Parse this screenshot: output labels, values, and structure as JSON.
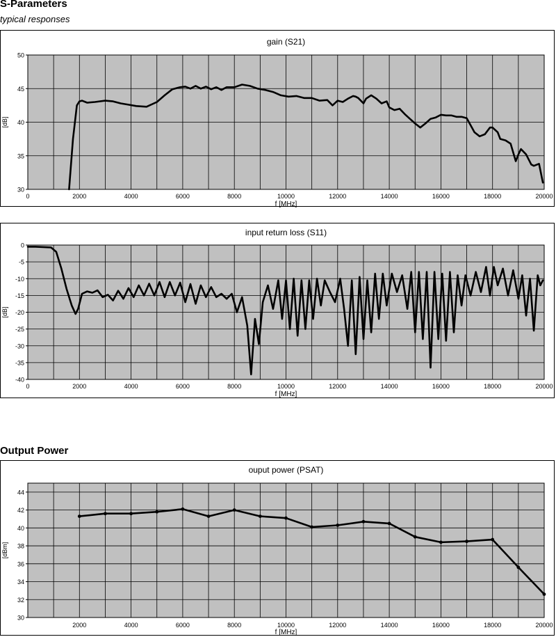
{
  "sections": {
    "sparams": {
      "title": "S-Parameters",
      "subtitle": "typical responses"
    },
    "output_power": {
      "title": "Output Power"
    }
  },
  "chart_data": [
    {
      "type": "line",
      "title": "gain (S21)",
      "xlabel": "f [MHz]",
      "ylabel": "[dB]",
      "xlim": [
        0,
        20000
      ],
      "ylim": [
        30,
        50
      ],
      "xticks": [
        0,
        2000,
        4000,
        6000,
        8000,
        10000,
        12000,
        14000,
        16000,
        18000,
        20000
      ],
      "yticks": [
        30,
        35,
        40,
        45,
        50
      ],
      "grid": true,
      "plot_background": "#c0c0c0",
      "line_color": "#000000",
      "series": [
        {
          "x": [
            1600,
            1750,
            1900,
            2000,
            2100,
            2300,
            2600,
            3000,
            3300,
            3600,
            3900,
            4200,
            4600,
            5000,
            5300,
            5600,
            5900,
            6100,
            6300,
            6500,
            6700,
            6900,
            7100,
            7300,
            7500,
            7700,
            8000,
            8300,
            8600,
            8900,
            9200,
            9500,
            9800,
            10100,
            10400,
            10700,
            11000,
            11300,
            11600,
            11800,
            12000,
            12200,
            12400,
            12600,
            12700,
            12800,
            13000,
            13100,
            13300,
            13500,
            13700,
            13900,
            14000,
            14200,
            14400,
            14600,
            14800,
            15000,
            15200,
            15400,
            15600,
            15800,
            16000,
            16200,
            16400,
            16600,
            16800,
            17000,
            17200,
            17300,
            17500,
            17700,
            17900,
            18000,
            18200,
            18300,
            18500,
            18700,
            18900,
            19000,
            19100,
            19300,
            19500,
            19600,
            19800,
            19950
          ],
          "y": [
            30,
            37.5,
            42.5,
            43.1,
            43.2,
            42.9,
            43.0,
            43.2,
            43.1,
            42.8,
            42.6,
            42.4,
            42.3,
            43.0,
            44.0,
            44.9,
            45.2,
            45.3,
            45.0,
            45.4,
            45.0,
            45.3,
            44.9,
            45.2,
            44.8,
            45.2,
            45.2,
            45.6,
            45.4,
            45.0,
            44.8,
            44.5,
            44.0,
            43.8,
            43.9,
            43.6,
            43.6,
            43.2,
            43.3,
            42.5,
            43.2,
            43.0,
            43.5,
            43.9,
            43.8,
            43.6,
            42.8,
            43.5,
            44.0,
            43.5,
            42.8,
            43.1,
            42.2,
            41.8,
            42.0,
            41.2,
            40.5,
            39.8,
            39.2,
            39.8,
            40.5,
            40.7,
            41.1,
            41.0,
            41.0,
            40.8,
            40.8,
            40.6,
            39.2,
            38.5,
            37.9,
            38.2,
            39.2,
            39.2,
            38.5,
            37.5,
            37.3,
            36.8,
            34.2,
            35.2,
            36.0,
            35.2,
            33.7,
            33.5,
            33.8,
            31.0
          ]
        }
      ]
    },
    {
      "type": "line",
      "title": "input return loss (S11)",
      "xlabel": "f [MHz]",
      "ylabel": "[dB]",
      "xlim": [
        0,
        20000
      ],
      "ylim": [
        -40,
        0
      ],
      "xticks": [
        0,
        2000,
        4000,
        6000,
        8000,
        10000,
        12000,
        14000,
        16000,
        18000,
        20000
      ],
      "yticks": [
        0,
        -5,
        -10,
        -15,
        -20,
        -25,
        -30,
        -35,
        -40
      ],
      "grid": true,
      "plot_background": "#c0c0c0",
      "line_color": "#000000",
      "series": [
        {
          "x": [
            0,
            300,
            600,
            900,
            1100,
            1300,
            1500,
            1700,
            1850,
            1950,
            2100,
            2300,
            2500,
            2700,
            2900,
            3100,
            3300,
            3500,
            3700,
            3900,
            4100,
            4300,
            4500,
            4700,
            4900,
            5100,
            5300,
            5500,
            5700,
            5900,
            6100,
            6300,
            6500,
            6700,
            6900,
            7100,
            7300,
            7500,
            7700,
            7900,
            8100,
            8300,
            8500,
            8650,
            8800,
            8950,
            9100,
            9300,
            9500,
            9700,
            9850,
            10000,
            10150,
            10300,
            10450,
            10600,
            10750,
            10900,
            11050,
            11200,
            11350,
            11500,
            11700,
            11900,
            12100,
            12250,
            12400,
            12550,
            12700,
            12850,
            13000,
            13150,
            13300,
            13450,
            13600,
            13750,
            13900,
            14100,
            14300,
            14500,
            14700,
            14850,
            15000,
            15150,
            15300,
            15450,
            15600,
            15750,
            15900,
            16050,
            16200,
            16350,
            16500,
            16650,
            16800,
            16950,
            17150,
            17350,
            17550,
            17750,
            17900,
            18050,
            18200,
            18400,
            18600,
            18800,
            19000,
            19150,
            19300,
            19450,
            19600,
            19750,
            19850,
            19950
          ],
          "y": [
            -0.5,
            -0.5,
            -0.6,
            -0.7,
            -2,
            -7,
            -13,
            -18,
            -20.5,
            -19,
            -14.5,
            -13.8,
            -14.2,
            -13.5,
            -15.5,
            -14.8,
            -16.5,
            -13.6,
            -16.0,
            -12.8,
            -15.5,
            -12.0,
            -15.0,
            -11.5,
            -15.0,
            -11.0,
            -15.5,
            -11.0,
            -15.0,
            -11.2,
            -17.0,
            -11.6,
            -17.5,
            -12.0,
            -15.5,
            -12.5,
            -15.5,
            -14.5,
            -16.0,
            -14.5,
            -20.0,
            -15.5,
            -24.0,
            -38.5,
            -22.0,
            -29.5,
            -17.0,
            -12.0,
            -19.0,
            -10.5,
            -22.0,
            -10.5,
            -25.0,
            -10.0,
            -27.0,
            -10.5,
            -25.0,
            -10.5,
            -22.0,
            -10.0,
            -18.0,
            -10.5,
            -14.0,
            -17.0,
            -10.0,
            -19.0,
            -30.0,
            -10.5,
            -32.5,
            -9.5,
            -28.0,
            -10.5,
            -26.0,
            -8.5,
            -22.0,
            -8.5,
            -18.0,
            -8.5,
            -14.0,
            -9.0,
            -19.0,
            -8.0,
            -26.0,
            -8.0,
            -28.0,
            -8.0,
            -36.5,
            -8.0,
            -28.0,
            -8.5,
            -28.5,
            -8.0,
            -26.0,
            -9.0,
            -18.0,
            -9.0,
            -15.0,
            -8.0,
            -14.0,
            -6.5,
            -15.0,
            -6.5,
            -12.0,
            -7.0,
            -15.0,
            -7.5,
            -16.0,
            -9.0,
            -21.0,
            -10.0,
            -25.5,
            -9.0,
            -12.0,
            -10.5
          ]
        }
      ]
    },
    {
      "type": "line",
      "title": "ouput power (PSAT)",
      "xlabel": "f [MHz]",
      "ylabel": "[dBm]",
      "xlim": [
        0,
        20000
      ],
      "ylim": [
        30,
        45
      ],
      "xticks": [
        2000,
        4000,
        6000,
        8000,
        10000,
        12000,
        14000,
        16000,
        18000,
        20000
      ],
      "yticks": [
        30,
        32,
        34,
        36,
        38,
        40,
        42,
        44
      ],
      "grid": true,
      "plot_background": "#c0c0c0",
      "line_color": "#000000",
      "markers": true,
      "series": [
        {
          "x": [
            2000,
            3000,
            4000,
            5000,
            6000,
            7000,
            8000,
            9000,
            10000,
            11000,
            12000,
            13000,
            14000,
            15000,
            16000,
            17000,
            18000,
            19000,
            20000
          ],
          "y": [
            41.3,
            41.6,
            41.6,
            41.8,
            42.1,
            41.3,
            42.0,
            41.3,
            41.1,
            40.1,
            40.3,
            40.7,
            40.5,
            39.0,
            38.4,
            38.5,
            38.7,
            35.6,
            32.6
          ]
        }
      ]
    }
  ]
}
